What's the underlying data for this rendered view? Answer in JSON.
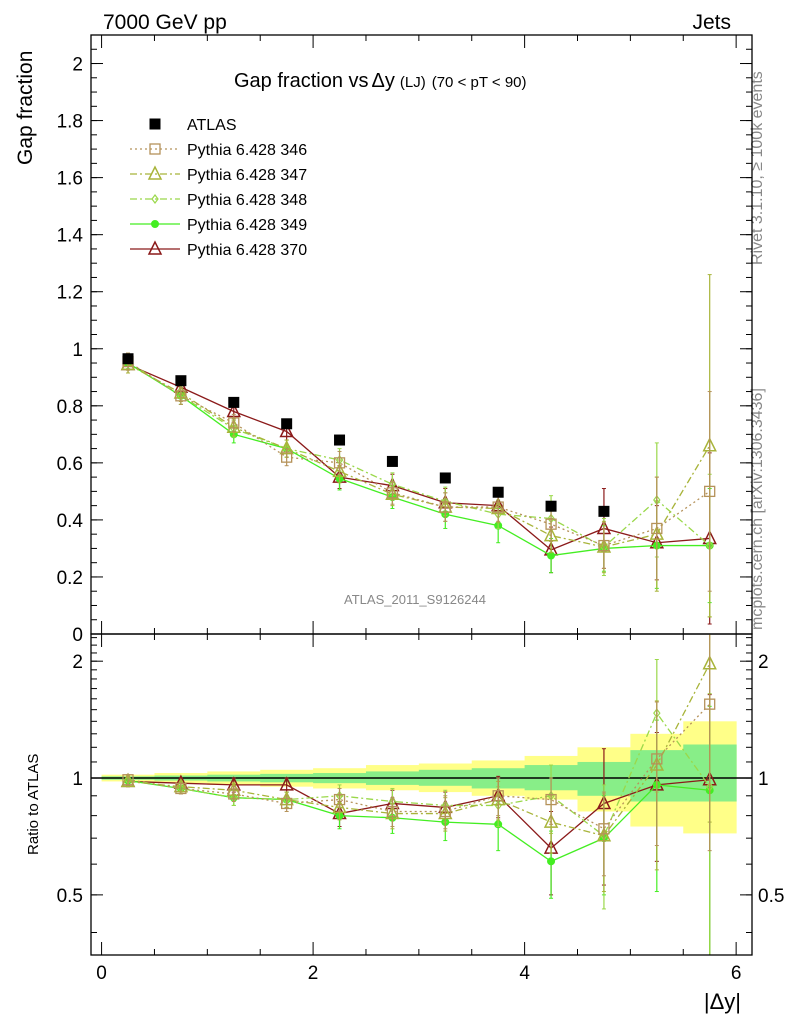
{
  "header": {
    "left": "7000 GeV pp",
    "right": "Jets"
  },
  "side_labels": {
    "rivet": "Rivet 3.1.10, ≥ 100k events",
    "mcplots": "mcplots.cern.ch [arXiv:1306.3436]"
  },
  "chart_data": [
    {
      "type": "scatter",
      "panel": "main",
      "title": "Gap fraction vs Δy (LJ) (70 < pT < 90)",
      "title_parts": {
        "main": "Gap fraction vs",
        "delta": "Δy",
        "sub": "(LJ)",
        "range": "(70 < pT <  90)"
      },
      "ylabel": "Gap fraction",
      "xlabel": "",
      "watermark": "ATLAS_2011_S9126244",
      "xlim": [
        -0.1,
        6.15
      ],
      "ylim": [
        0,
        2.1
      ],
      "y_ticks": [
        0,
        0.2,
        0.4,
        0.6,
        0.8,
        1,
        1.2,
        1.4,
        1.6,
        1.8,
        2
      ],
      "y_tick_labels": [
        "0",
        "0.2",
        "0.4",
        "0.6",
        "0.8",
        "1",
        "1.2",
        "1.4",
        "1.6",
        "1.8",
        "2"
      ],
      "legend_position": "top-left",
      "x": [
        0.25,
        0.75,
        1.25,
        1.75,
        2.25,
        2.75,
        3.25,
        3.75,
        4.25,
        4.75,
        5.25,
        5.75
      ],
      "series": [
        {
          "name": "ATLAS",
          "color": "#000000",
          "marker": "filled-square",
          "line": "none",
          "values": [
            0.965,
            0.888,
            0.812,
            0.737,
            0.68,
            0.605,
            0.547,
            0.497,
            0.448,
            0.43,
            null,
            null
          ]
        },
        {
          "name": "Pythia 6.428 346",
          "color": "#b5925a",
          "marker": "open-square",
          "line": "dotted",
          "values": [
            0.955,
            0.835,
            0.74,
            0.62,
            0.6,
            0.495,
            0.445,
            0.445,
            0.385,
            0.31,
            0.37,
            0.5
          ],
          "errors": [
            0.03,
            0.03,
            0.03,
            0.03,
            0.04,
            0.04,
            0.05,
            0.05,
            0.06,
            0.08,
            0.18,
            0.35
          ]
        },
        {
          "name": "Pythia 6.428 347",
          "color": "#a8b43a",
          "marker": "open-triangle",
          "line": "dash-dot",
          "values": [
            0.945,
            0.845,
            0.725,
            0.65,
            0.57,
            0.49,
            0.445,
            0.44,
            0.345,
            0.305,
            0.35,
            0.66
          ],
          "errors": [
            0.03,
            0.03,
            0.03,
            0.03,
            0.04,
            0.04,
            0.05,
            0.05,
            0.06,
            0.09,
            0.2,
            0.6
          ]
        },
        {
          "name": "Pythia 6.428 348",
          "color": "#9ad84a",
          "marker": "open-diamond",
          "line": "dash-dot",
          "values": [
            0.955,
            0.835,
            0.72,
            0.65,
            0.61,
            0.525,
            0.465,
            0.42,
            0.405,
            0.305,
            0.47,
            0.31
          ],
          "errors": [
            0.03,
            0.03,
            0.03,
            0.03,
            0.04,
            0.04,
            0.05,
            0.05,
            0.08,
            0.1,
            0.2,
            0.25
          ]
        },
        {
          "name": "Pythia 6.428 349",
          "color": "#44ee22",
          "marker": "filled-circle",
          "line": "solid",
          "values": [
            0.95,
            0.835,
            0.7,
            0.65,
            0.545,
            0.48,
            0.42,
            0.38,
            0.275,
            0.3,
            0.31,
            0.31
          ],
          "errors": [
            0.02,
            0.03,
            0.03,
            0.03,
            0.04,
            0.04,
            0.05,
            0.06,
            0.06,
            0.08,
            0.15,
            0.2
          ]
        },
        {
          "name": "Pythia 6.428 370",
          "color": "#8b1a1a",
          "marker": "open-triangle",
          "line": "solid",
          "values": [
            0.945,
            0.865,
            0.78,
            0.71,
            0.55,
            0.52,
            0.46,
            0.45,
            0.295,
            0.37,
            0.32,
            0.335
          ],
          "errors": [
            0.03,
            0.03,
            0.03,
            0.03,
            0.04,
            0.04,
            0.05,
            0.06,
            0.08,
            0.14,
            0.13,
            0.3
          ]
        }
      ]
    },
    {
      "type": "scatter",
      "panel": "ratio",
      "ylabel": "Ratio to ATLAS",
      "xlabel": "|Δy|",
      "xlim": [
        -0.1,
        6.15
      ],
      "ylim": [
        0.35,
        2.35
      ],
      "y_scale": "log",
      "x_ticks": [
        0,
        2,
        4,
        6
      ],
      "x_tick_labels": [
        "0",
        "2",
        "4",
        "6"
      ],
      "y_ticks": [
        0.5,
        1,
        2
      ],
      "y_tick_labels": [
        "0.5",
        "1",
        "2"
      ],
      "x": [
        0.25,
        0.75,
        1.25,
        1.75,
        2.25,
        2.75,
        3.25,
        3.75,
        4.25,
        4.75,
        5.25,
        5.75
      ],
      "band_yellow": [
        [
          0.98,
          1.02
        ],
        [
          0.97,
          1.03
        ],
        [
          0.96,
          1.04
        ],
        [
          0.95,
          1.05
        ],
        [
          0.94,
          1.06
        ],
        [
          0.93,
          1.08
        ],
        [
          0.92,
          1.09
        ],
        [
          0.9,
          1.11
        ],
        [
          0.88,
          1.14
        ],
        [
          0.82,
          1.2
        ],
        [
          0.75,
          1.3
        ],
        [
          0.72,
          1.4
        ]
      ],
      "band_green": [
        [
          0.99,
          1.01
        ],
        [
          0.985,
          1.015
        ],
        [
          0.98,
          1.02
        ],
        [
          0.975,
          1.025
        ],
        [
          0.97,
          1.03
        ],
        [
          0.96,
          1.04
        ],
        [
          0.955,
          1.05
        ],
        [
          0.94,
          1.06
        ],
        [
          0.93,
          1.08
        ],
        [
          0.9,
          1.1
        ],
        [
          0.87,
          1.18
        ],
        [
          0.87,
          1.22
        ]
      ],
      "series": [
        {
          "name": "Pythia 6.428 346",
          "color": "#b5925a",
          "marker": "open-square",
          "line": "dotted",
          "values": [
            0.99,
            0.94,
            0.91,
            0.86,
            0.88,
            0.82,
            0.82,
            0.9,
            0.88,
            0.74,
            1.12,
            1.55
          ],
          "errors": [
            0.03,
            0.03,
            0.04,
            0.04,
            0.06,
            0.07,
            0.08,
            0.1,
            0.12,
            0.18,
            0.45,
            0.9
          ]
        },
        {
          "name": "Pythia 6.428 347",
          "color": "#a8b43a",
          "marker": "open-triangle",
          "line": "dash-dot",
          "values": [
            0.98,
            0.95,
            0.93,
            0.88,
            0.84,
            0.81,
            0.81,
            0.88,
            0.77,
            0.71,
            1.08,
            1.97
          ],
          "errors": [
            0.03,
            0.03,
            0.04,
            0.04,
            0.06,
            0.07,
            0.08,
            0.1,
            0.13,
            0.2,
            0.5,
            1.2
          ]
        },
        {
          "name": "Pythia 6.428 348",
          "color": "#9ad84a",
          "marker": "open-diamond",
          "line": "dash-dot",
          "values": [
            0.99,
            0.94,
            0.89,
            0.88,
            0.9,
            0.87,
            0.85,
            0.85,
            0.9,
            0.71,
            1.47,
            0.95
          ],
          "errors": [
            0.03,
            0.03,
            0.04,
            0.04,
            0.06,
            0.07,
            0.08,
            0.1,
            0.18,
            0.25,
            0.55,
            0.7
          ]
        },
        {
          "name": "Pythia 6.428 349",
          "color": "#44ee22",
          "marker": "filled-circle",
          "line": "solid",
          "values": [
            0.985,
            0.94,
            0.89,
            0.88,
            0.8,
            0.79,
            0.77,
            0.76,
            0.61,
            0.7,
            0.96,
            0.93
          ],
          "errors": [
            0.02,
            0.03,
            0.04,
            0.04,
            0.06,
            0.07,
            0.08,
            0.11,
            0.12,
            0.2,
            0.45,
            0.6
          ]
        },
        {
          "name": "Pythia 6.428 370",
          "color": "#8b1a1a",
          "marker": "open-triangle",
          "line": "solid",
          "values": [
            0.98,
            0.97,
            0.96,
            0.96,
            0.81,
            0.86,
            0.84,
            0.9,
            0.66,
            0.86,
            0.96,
            0.99
          ],
          "errors": [
            0.03,
            0.03,
            0.04,
            0.04,
            0.06,
            0.07,
            0.08,
            0.11,
            0.16,
            0.33,
            0.35,
            0.65
          ]
        }
      ]
    }
  ]
}
